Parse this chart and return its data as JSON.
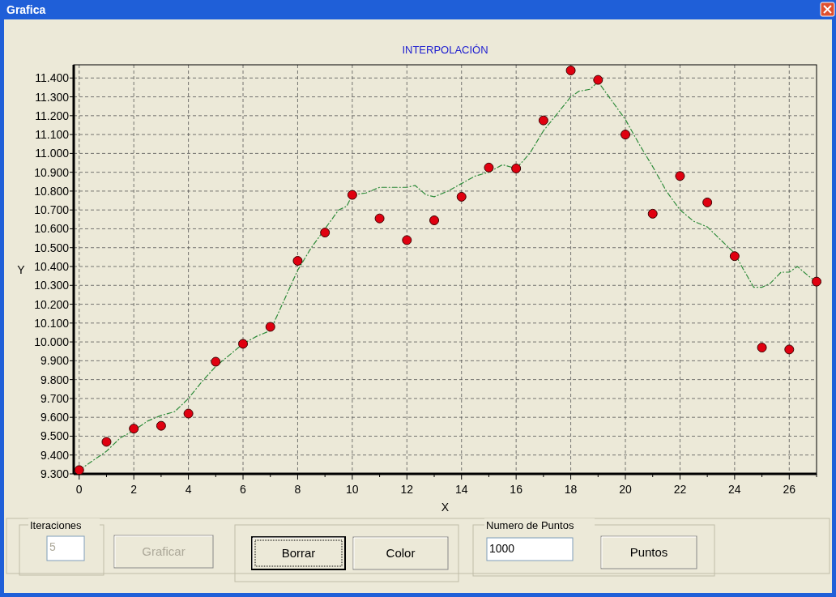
{
  "chart_data": {
    "type": "scatter",
    "title": "INTERPOLACIÓN",
    "xlabel": "X",
    "ylabel": "Y",
    "xlim": [
      -0.2,
      27
    ],
    "ylim": [
      9300,
      11470
    ],
    "xticks": [
      0,
      {
        "value": 1,
        "label": null
      },
      2,
      {
        "value": 3,
        "label": null
      },
      4,
      {
        "value": 5,
        "label": null
      },
      6,
      {
        "value": 7,
        "label": null
      },
      8,
      {
        "value": 9,
        "label": null
      },
      10,
      {
        "value": 11,
        "label": null
      },
      12,
      {
        "value": 13,
        "label": null
      },
      14,
      {
        "value": 15,
        "label": null
      },
      16,
      {
        "value": 17,
        "label": null
      },
      18,
      {
        "value": 19,
        "label": null
      },
      20,
      {
        "value": 21,
        "label": null
      },
      22,
      {
        "value": 23,
        "label": null
      },
      24,
      {
        "value": 25,
        "label": null
      },
      26,
      {
        "value": 27,
        "label": null
      }
    ],
    "yticks": [
      {
        "value": 9300,
        "label": "9.300"
      },
      {
        "value": 9400,
        "label": "9.400"
      },
      {
        "value": 9500,
        "label": "9.500"
      },
      {
        "value": 9600,
        "label": "9.600"
      },
      {
        "value": 9700,
        "label": "9.700"
      },
      {
        "value": 9800,
        "label": "9.800"
      },
      {
        "value": 9900,
        "label": "9.900"
      },
      {
        "value": 10000,
        "label": "10.000"
      },
      {
        "value": 10100,
        "label": "10.100"
      },
      {
        "value": 10200,
        "label": "10.200"
      },
      {
        "value": 10300,
        "label": "10.300"
      },
      {
        "value": 10400,
        "label": "10.400"
      },
      {
        "value": 10500,
        "label": "10.500"
      },
      {
        "value": 10600,
        "label": "10.600"
      },
      {
        "value": 10700,
        "label": "10.700"
      },
      {
        "value": 10800,
        "label": "10.800"
      },
      {
        "value": 10900,
        "label": "10.900"
      },
      {
        "value": 11000,
        "label": "11.000"
      },
      {
        "value": 11100,
        "label": "11.100"
      },
      {
        "value": 11200,
        "label": "11.200"
      },
      {
        "value": 11300,
        "label": "11.300"
      },
      {
        "value": 11400,
        "label": "11.400"
      }
    ],
    "grid": true,
    "series": [
      {
        "type": "line",
        "color": "#2e8b3a",
        "line_style": "dashed",
        "marker": "none",
        "x": [
          0,
          0.5,
          1,
          1.5,
          2,
          2.5,
          3,
          3.5,
          4,
          4.5,
          5,
          5.5,
          6,
          6.5,
          7,
          7.5,
          8,
          8.5,
          9,
          9.5,
          9.8,
          10,
          10.5,
          11,
          11.5,
          12,
          12.3,
          12.7,
          13,
          13.5,
          14,
          14.5,
          15,
          15.5,
          16,
          16.5,
          17,
          17.5,
          18,
          18.3,
          18.7,
          19,
          19.5,
          20,
          20.5,
          21,
          21.5,
          22,
          22.5,
          23,
          23.5,
          24,
          24.3,
          24.7,
          25,
          25.3,
          25.7,
          26,
          26.3,
          26.7,
          27
        ],
        "values": [
          9320,
          9370,
          9420,
          9490,
          9530,
          9580,
          9610,
          9630,
          9700,
          9790,
          9870,
          9930,
          9990,
          10030,
          10060,
          10220,
          10380,
          10500,
          10600,
          10700,
          10720,
          10780,
          10790,
          10820,
          10820,
          10820,
          10830,
          10780,
          10770,
          10800,
          10840,
          10880,
          10900,
          10940,
          10920,
          11000,
          11120,
          11210,
          11300,
          11330,
          11340,
          11380,
          11280,
          11180,
          11050,
          10930,
          10800,
          10700,
          10640,
          10610,
          10540,
          10470,
          10390,
          10290,
          10290,
          10310,
          10370,
          10370,
          10400,
          10350,
          10320
        ]
      },
      {
        "type": "scatter",
        "color": "#e00010",
        "marker": "circle",
        "x": [
          0,
          1,
          2,
          3,
          4,
          5,
          6,
          7,
          8,
          9,
          10,
          11,
          12,
          13,
          14,
          15,
          16,
          17,
          18,
          19,
          20,
          21,
          22,
          23,
          24,
          25,
          26,
          27
        ],
        "values": [
          9320,
          9470,
          9540,
          9555,
          9620,
          9895,
          9990,
          10080,
          10430,
          10580,
          10780,
          10655,
          10540,
          10645,
          10770,
          10925,
          10920,
          11175,
          11440,
          11390,
          11100,
          10680,
          10880,
          10740,
          10455,
          9970,
          9960,
          10320
        ]
      }
    ],
    "annotations": [
      "Grafica",
      "Iteraciones",
      "5",
      "Graficar",
      "Borrar",
      "Color",
      "Numero de Puntos",
      "1000",
      "Puntos"
    ]
  }
}
